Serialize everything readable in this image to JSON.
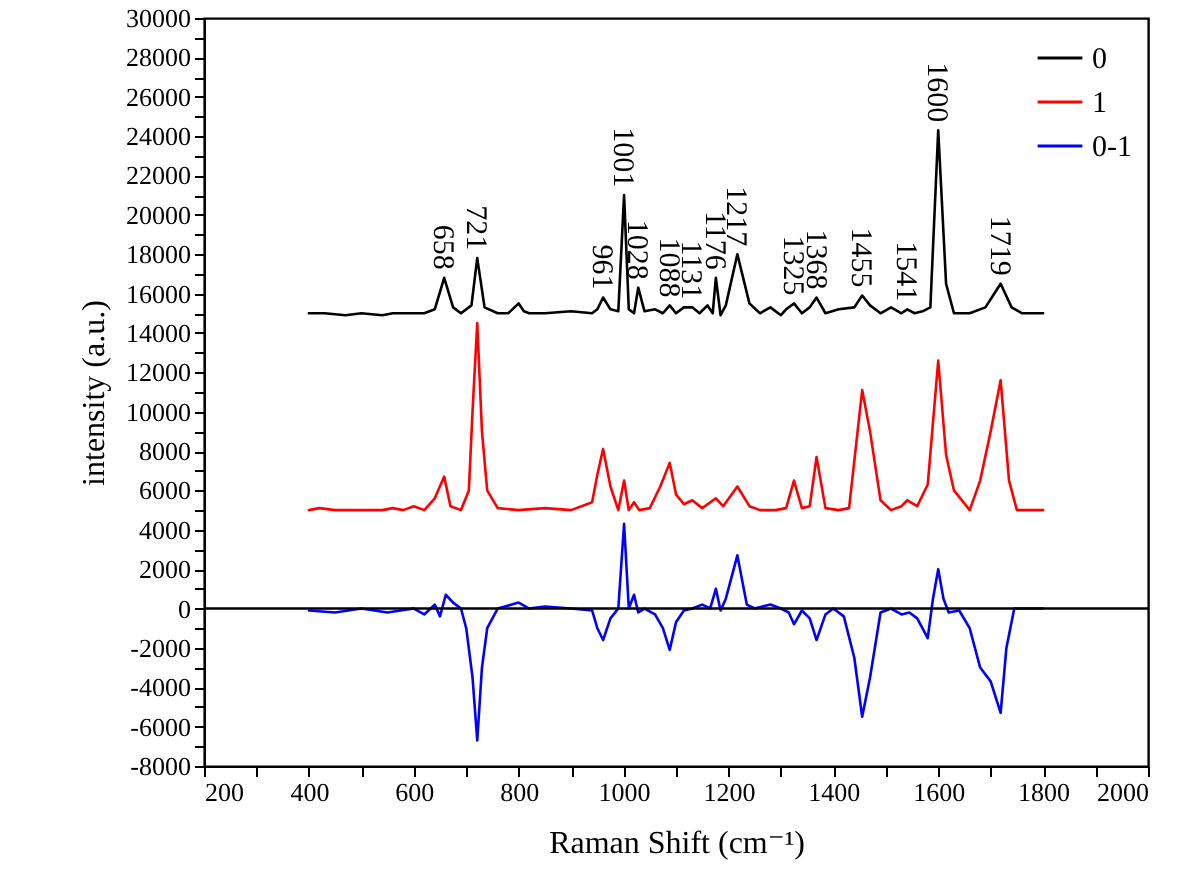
{
  "chart_data": {
    "type": "line",
    "xlabel": "Raman Shift (cm⁻¹)",
    "ylabel": "intensity (a.u.)",
    "xlim": [
      200,
      2000
    ],
    "ylim": [
      -8000,
      30000
    ],
    "xticks": [
      200,
      {
        "value": 300,
        "label": null
      },
      400,
      {
        "value": 500,
        "label": null
      },
      600,
      {
        "value": 700,
        "label": null
      },
      800,
      {
        "value": 900,
        "label": null
      },
      1000,
      {
        "value": 1100,
        "label": null
      },
      1200,
      {
        "value": 1300,
        "label": null
      },
      1400,
      {
        "value": 1500,
        "label": null
      },
      1600,
      {
        "value": 1700,
        "label": null
      },
      1800,
      {
        "value": 1900,
        "label": null
      },
      2000
    ],
    "yticks": [
      -8000,
      {
        "value": -7000,
        "label": null
      },
      -6000,
      {
        "value": -5000,
        "label": null
      },
      -4000,
      {
        "value": -3000,
        "label": null
      },
      -2000,
      {
        "value": -1000,
        "label": null
      },
      0,
      {
        "value": 1000,
        "label": null
      },
      2000,
      {
        "value": 3000,
        "label": null
      },
      4000,
      {
        "value": 5000,
        "label": null
      },
      6000,
      {
        "value": 7000,
        "label": null
      },
      8000,
      {
        "value": 9000,
        "label": null
      },
      10000,
      {
        "value": 11000,
        "label": null
      },
      12000,
      {
        "value": 13000,
        "label": null
      },
      14000,
      {
        "value": 15000,
        "label": null
      },
      16000,
      {
        "value": 17000,
        "label": null
      },
      18000,
      {
        "value": 19000,
        "label": null
      },
      20000,
      {
        "value": 21000,
        "label": null
      },
      22000,
      {
        "value": 23000,
        "label": null
      },
      24000,
      {
        "value": 25000,
        "label": null
      },
      26000,
      {
        "value": 27000,
        "label": null
      },
      28000,
      {
        "value": 29000,
        "label": null
      },
      30000
    ],
    "grid": false,
    "legend": "top right",
    "ref_lines": [
      {
        "axis": "y",
        "value": 0,
        "color": "#000000"
      }
    ],
    "annotations": [
      {
        "text": "658",
        "x": 658,
        "y": 16800
      },
      {
        "text": "721",
        "x": 721,
        "y": 17800
      },
      {
        "text": "961",
        "x": 961,
        "y": 15800
      },
      {
        "text": "1001",
        "x": 1001,
        "y": 21000
      },
      {
        "text": "1028",
        "x": 1028,
        "y": 16300
      },
      {
        "text": "1088",
        "x": 1088,
        "y": 15400
      },
      {
        "text": "1131",
        "x": 1131,
        "y": 15300
      },
      {
        "text": "1176",
        "x": 1176,
        "y": 16800
      },
      {
        "text": "1217",
        "x": 1217,
        "y": 18000
      },
      {
        "text": "1325",
        "x": 1325,
        "y": 15500
      },
      {
        "text": "1368",
        "x": 1368,
        "y": 15800
      },
      {
        "text": "1455",
        "x": 1455,
        "y": 15900
      },
      {
        "text": "1541",
        "x": 1541,
        "y": 15200
      },
      {
        "text": "1600",
        "x": 1600,
        "y": 24300
      },
      {
        "text": "1719",
        "x": 1719,
        "y": 16500
      }
    ],
    "series": [
      {
        "name": "0",
        "color": "#000000",
        "x": [
          400,
          430,
          470,
          500,
          540,
          560,
          580,
          600,
          620,
          630,
          640,
          658,
          675,
          690,
          710,
          721,
          735,
          760,
          780,
          800,
          810,
          820,
          850,
          900,
          940,
          950,
          961,
          975,
          990,
          1001,
          1010,
          1020,
          1028,
          1040,
          1060,
          1075,
          1088,
          1100,
          1115,
          1131,
          1145,
          1160,
          1170,
          1176,
          1185,
          1195,
          1217,
          1240,
          1260,
          1280,
          1300,
          1310,
          1325,
          1340,
          1355,
          1368,
          1385,
          1410,
          1440,
          1455,
          1470,
          1490,
          1510,
          1530,
          1541,
          1555,
          1570,
          1585,
          1600,
          1615,
          1630,
          1660,
          1690,
          1719,
          1740,
          1760,
          1800
        ],
        "values": [
          15000,
          15000,
          14900,
          15000,
          14900,
          15000,
          15000,
          15000,
          15000,
          15100,
          15200,
          16800,
          15300,
          15000,
          15400,
          17800,
          15300,
          15000,
          15000,
          15500,
          15100,
          15000,
          15000,
          15100,
          15000,
          15200,
          15800,
          15200,
          15100,
          21000,
          15200,
          15000,
          16300,
          15100,
          15200,
          15000,
          15400,
          15000,
          15300,
          15300,
          15000,
          15400,
          15000,
          16800,
          14900,
          15400,
          18000,
          15500,
          15000,
          15300,
          14900,
          15200,
          15500,
          15000,
          15300,
          15800,
          15000,
          15200,
          15300,
          15900,
          15400,
          15000,
          15300,
          15000,
          15200,
          15000,
          15100,
          15300,
          24300,
          16500,
          15000,
          15000,
          15300,
          16500,
          15300,
          15000,
          15000
        ]
      },
      {
        "name": "1",
        "color": "#ff0000",
        "x": [
          400,
          420,
          450,
          480,
          500,
          540,
          560,
          580,
          600,
          620,
          640,
          658,
          670,
          690,
          705,
          712,
          721,
          730,
          740,
          760,
          800,
          850,
          900,
          940,
          950,
          961,
          975,
          990,
          1001,
          1010,
          1020,
          1030,
          1050,
          1070,
          1088,
          1100,
          1115,
          1131,
          1150,
          1176,
          1190,
          1217,
          1240,
          1260,
          1290,
          1310,
          1325,
          1340,
          1355,
          1368,
          1385,
          1410,
          1430,
          1455,
          1470,
          1490,
          1510,
          1530,
          1541,
          1560,
          1580,
          1600,
          1615,
          1630,
          1660,
          1680,
          1700,
          1719,
          1735,
          1750,
          1800
        ],
        "values": [
          5000,
          5100,
          5000,
          5000,
          5000,
          5000,
          5100,
          5000,
          5200,
          5000,
          5600,
          6700,
          5200,
          5000,
          6000,
          10000,
          14500,
          9000,
          6000,
          5100,
          5000,
          5100,
          5000,
          5400,
          6800,
          8100,
          6200,
          5000,
          6500,
          5000,
          5400,
          5000,
          5100,
          6200,
          7400,
          5800,
          5300,
          5500,
          5100,
          5600,
          5200,
          6200,
          5200,
          5000,
          5000,
          5100,
          6500,
          5100,
          5200,
          7700,
          5100,
          5000,
          5100,
          11100,
          9000,
          5500,
          5000,
          5200,
          5500,
          5200,
          6300,
          12600,
          7800,
          6000,
          5000,
          6500,
          9000,
          11600,
          6500,
          5000,
          5000
        ]
      },
      {
        "name": "0-1",
        "color": "#0000ff",
        "x": [
          400,
          450,
          500,
          550,
          600,
          620,
          640,
          650,
          661,
          675,
          690,
          700,
          712,
          721,
          730,
          740,
          760,
          800,
          820,
          850,
          900,
          940,
          950,
          961,
          975,
          990,
          1001,
          1010,
          1020,
          1028,
          1040,
          1060,
          1075,
          1088,
          1100,
          1115,
          1131,
          1150,
          1165,
          1176,
          1185,
          1195,
          1217,
          1235,
          1250,
          1280,
          1300,
          1315,
          1325,
          1340,
          1355,
          1368,
          1385,
          1400,
          1420,
          1440,
          1455,
          1470,
          1490,
          1510,
          1530,
          1545,
          1560,
          1580,
          1590,
          1600,
          1610,
          1620,
          1640,
          1660,
          1680,
          1700,
          1719,
          1730,
          1745,
          1760,
          1800
        ],
        "values": [
          -100,
          -200,
          0,
          -200,
          0,
          -300,
          200,
          -400,
          700,
          300,
          0,
          -1000,
          -3500,
          -6700,
          -3000,
          -1000,
          0,
          300,
          0,
          100,
          0,
          -100,
          -1000,
          -1600,
          -500,
          0,
          4300,
          0,
          700,
          -200,
          0,
          -300,
          -1000,
          -2100,
          -700,
          -100,
          0,
          200,
          0,
          1000,
          -100,
          500,
          2700,
          200,
          0,
          200,
          0,
          -200,
          -800,
          -100,
          -500,
          -1600,
          -300,
          0,
          -400,
          -2500,
          -5500,
          -3500,
          -200,
          0,
          -300,
          -200,
          -500,
          -1500,
          500,
          2000,
          500,
          -200,
          -100,
          -1000,
          -3000,
          -3700,
          -5300,
          -2000,
          0,
          0,
          0
        ]
      }
    ]
  }
}
